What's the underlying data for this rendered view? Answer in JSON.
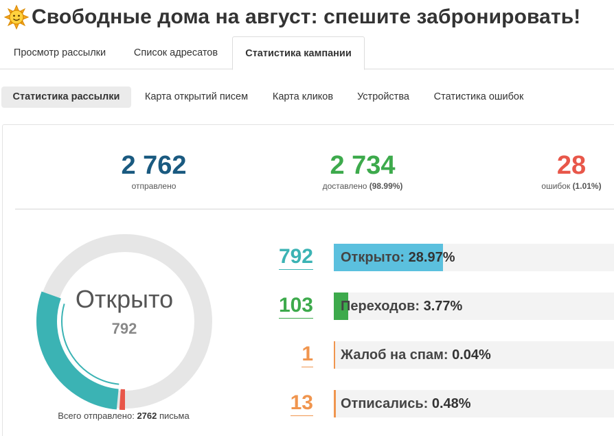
{
  "page": {
    "title": "Свободные дома на август: спешите забронировать!",
    "title_icon": "sun-icon"
  },
  "main_tabs": [
    {
      "label": "Просмотр рассылки",
      "active": false
    },
    {
      "label": "Список адресатов",
      "active": false
    },
    {
      "label": "Статистика кампании",
      "active": true
    }
  ],
  "sub_tabs": [
    {
      "label": "Статистика рассылки",
      "active": true
    },
    {
      "label": "Карта открытий писем",
      "active": false
    },
    {
      "label": "Карта кликов",
      "active": false
    },
    {
      "label": "Устройства",
      "active": false
    },
    {
      "label": "Статистика ошибок",
      "active": false
    }
  ],
  "summary": {
    "sent": {
      "value": "2 762",
      "label": "отправлено",
      "color": "#1a5a80"
    },
    "delivered": {
      "value": "2 734",
      "label": "доставлено",
      "percent": "(98.99%)",
      "color": "#3daa4c"
    },
    "errors": {
      "value": "28",
      "label": "ошибок",
      "percent": "(1.01%)",
      "color": "#e8574a"
    }
  },
  "donut": {
    "center_label": "Открыто",
    "center_value": "792",
    "caption_prefix": "Всего отправлено:",
    "caption_count": "2762",
    "caption_suffix": "письма",
    "opened_fraction": 0.2897,
    "error_fraction": 0.0101,
    "colors": {
      "opened": "#3bb3b4",
      "error": "#e8574a",
      "track": "#e6e6e6"
    }
  },
  "metrics": [
    {
      "value": "792",
      "label": "Открыто:",
      "percent": "28.97%",
      "fraction": 0.2897,
      "color": "#3bb3b4",
      "fill": "#5bc0de"
    },
    {
      "value": "103",
      "label": "Переходов:",
      "percent": "3.77%",
      "fraction": 0.0377,
      "color": "#3daa4c",
      "fill": "#3daa4c"
    },
    {
      "value": "1",
      "label": "Жалоб на спам:",
      "percent": "0.04%",
      "fraction": 0.0004,
      "color": "#f0954e",
      "fill": "#f0954e"
    },
    {
      "value": "13",
      "label": "Отписались:",
      "percent": "0.48%",
      "fraction": 0.0048,
      "color": "#f0954e",
      "fill": "#f0954e"
    }
  ]
}
